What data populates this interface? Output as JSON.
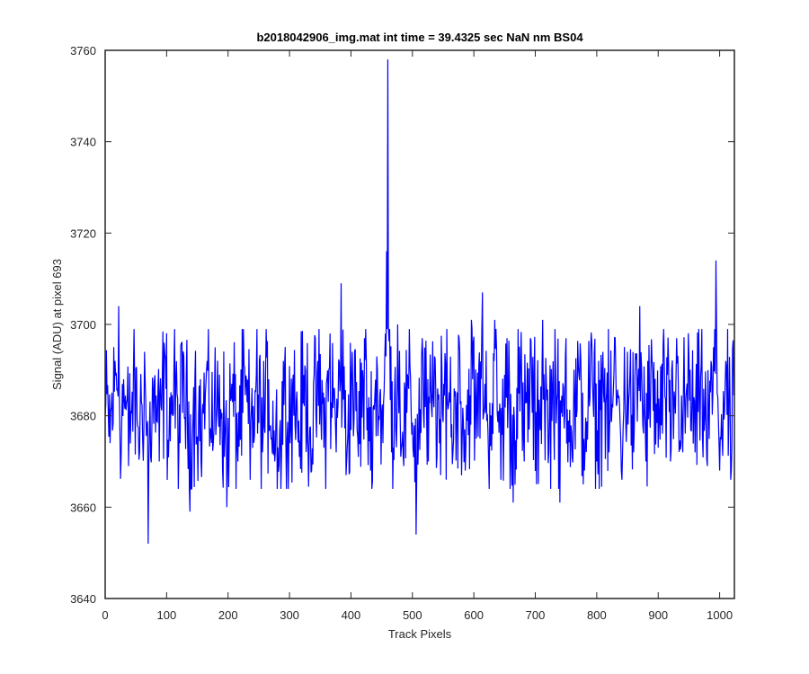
{
  "chart_data": {
    "type": "line",
    "title": "b2018042906_img.mat int time = 39.4325 sec  NaN nm BS04",
    "xlabel": "Track Pixels",
    "ylabel": "Signal (ADU) at pixel 693",
    "xlim": [
      0,
      1024
    ],
    "ylim": [
      3640,
      3760
    ],
    "xticks": [
      0,
      100,
      200,
      300,
      400,
      500,
      600,
      700,
      800,
      900,
      1000
    ],
    "yticks": [
      3640,
      3660,
      3680,
      3700,
      3720,
      3740,
      3760
    ],
    "xtick_labels": [
      "0",
      "100",
      "200",
      "300",
      "400",
      "500",
      "600",
      "700",
      "800",
      "900",
      "1000"
    ],
    "ytick_labels": [
      "3640",
      "3660",
      "3680",
      "3700",
      "3720",
      "3740",
      "3760"
    ],
    "grid": false,
    "box": true,
    "series": [
      {
        "color": "#0000ff",
        "mean": 3682,
        "n_points": 1024,
        "x": [
          0,
          8,
          16,
          22,
          26,
          30,
          38,
          46,
          56,
          64,
          70,
          78,
          88,
          96,
          104,
          112,
          120,
          128,
          138,
          146,
          156,
          166,
          176,
          186,
          194,
          198,
          206,
          216,
          226,
          236,
          246,
          256,
          266,
          276,
          286,
          290,
          296,
          306,
          316,
          326,
          336,
          346,
          356,
          366,
          376,
          384,
          392,
          402,
          412,
          422,
          432,
          442,
          452,
          456,
          458,
          460,
          466,
          476,
          486,
          496,
          506,
          516,
          526,
          536,
          546,
          556,
          566,
          576,
          586,
          596,
          604,
          614,
          624,
          634,
          644,
          654,
          664,
          672,
          682,
          692,
          702,
          712,
          722,
          732,
          740,
          750,
          760,
          770,
          780,
          790,
          800,
          810,
          820,
          830,
          840,
          850,
          860,
          870,
          880,
          890,
          900,
          910,
          920,
          930,
          940,
          950,
          960,
          970,
          980,
          990,
          994,
          1000,
          1010,
          1018,
          1024
        ],
        "y": [
          3680,
          3674,
          3692,
          3704,
          3671,
          3688,
          3669,
          3690,
          3672,
          3694,
          3652,
          3686,
          3670,
          3696,
          3676,
          3691,
          3673,
          3693,
          3659,
          3688,
          3670,
          3692,
          3674,
          3689,
          3671,
          3660,
          3687,
          3670,
          3691,
          3666,
          3689,
          3672,
          3688,
          3670,
          3664,
          3692,
          3675,
          3689,
          3671,
          3690,
          3668,
          3692,
          3673,
          3698,
          3672,
          3709,
          3667,
          3694,
          3671,
          3697,
          3668,
          3693,
          3674,
          3698,
          3716,
          3758,
          3672,
          3700,
          3669,
          3691,
          3654,
          3697,
          3670,
          3693,
          3667,
          3699,
          3672,
          3697,
          3668,
          3701,
          3675,
          3707,
          3670,
          3701,
          3666,
          3697,
          3661,
          3699,
          3670,
          3697,
          3665,
          3701,
          3672,
          3699,
          3661,
          3697,
          3671,
          3691,
          3668,
          3694,
          3670,
          3694,
          3672,
          3697,
          3668,
          3694,
          3672,
          3704,
          3670,
          3692,
          3673,
          3691,
          3670,
          3697,
          3672,
          3693,
          3672,
          3691,
          3669,
          3695,
          3714,
          3668,
          3692,
          3666,
          3680
        ]
      }
    ]
  }
}
